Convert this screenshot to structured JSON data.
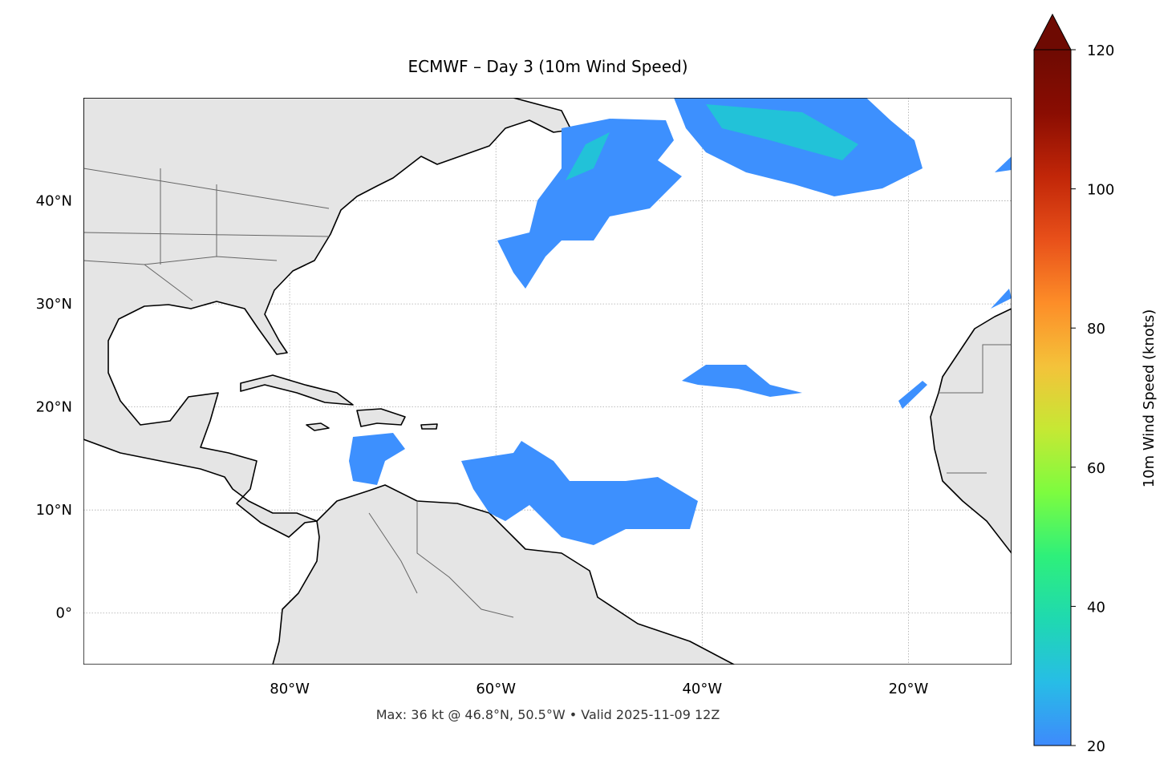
{
  "map": {
    "title": "ECMWF – Day 3 (10m Wind Speed)",
    "footer": "Max: 36 kt @ 46.8°N, 50.5°W • Valid 2025-11-09 12Z",
    "lonlim": [
      -100,
      -10
    ],
    "latlim": [
      -5,
      50
    ],
    "lon_ticks": [
      {
        "value": -80,
        "label": "80°W"
      },
      {
        "value": -60,
        "label": "60°W"
      },
      {
        "value": -40,
        "label": "40°W"
      },
      {
        "value": -20,
        "label": "20°W"
      }
    ],
    "lat_ticks": [
      {
        "value": 0,
        "label": "0°"
      },
      {
        "value": 10,
        "label": "10°N"
      },
      {
        "value": 20,
        "label": "20°N"
      },
      {
        "value": 30,
        "label": "30°N"
      },
      {
        "value": 40,
        "label": "40°N"
      }
    ],
    "colorbar": {
      "label": "10m Wind Speed (knots)",
      "lim": [
        20,
        120
      ],
      "ticks": [
        20,
        40,
        60,
        80,
        100,
        120
      ],
      "colors": [
        "#3e8afc",
        "#27bde6",
        "#1fd9b0",
        "#2ef07a",
        "#7dfc3f",
        "#c6e834",
        "#f4c23a",
        "#fd8d28",
        "#e8501a",
        "#c12608",
        "#8a0d02",
        "#6e0a02"
      ]
    }
  }
}
